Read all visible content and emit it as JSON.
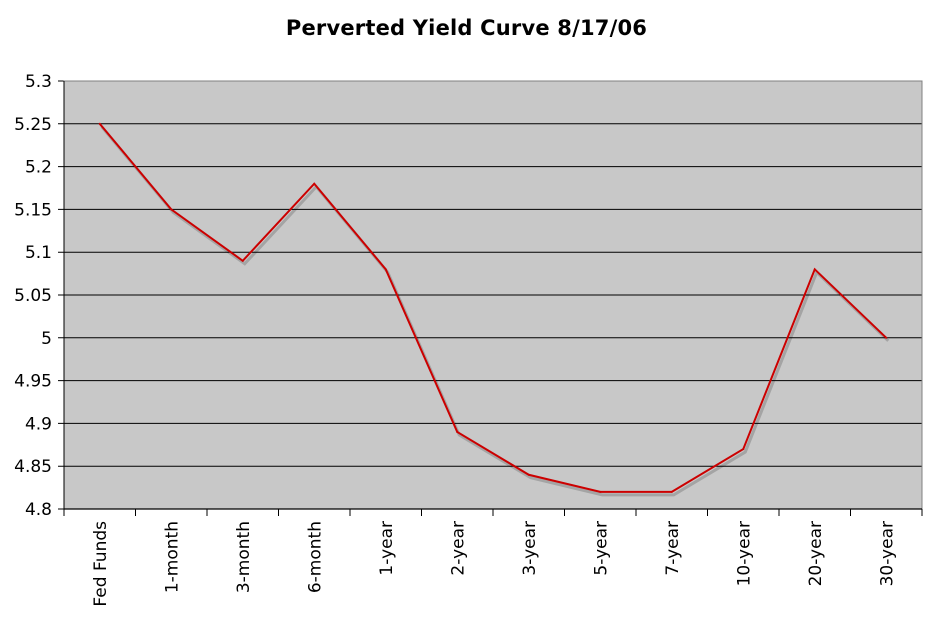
{
  "chart_data": {
    "type": "line",
    "title": "Perverted Yield Curve 8/17/06",
    "xlabel": "",
    "ylabel": "",
    "categories": [
      "Fed Funds",
      "1-month",
      "3-month",
      "6-month",
      "1-year",
      "2-year",
      "3-year",
      "5-year",
      "7-year",
      "10-year",
      "20-year",
      "30-year"
    ],
    "series": [
      {
        "values": [
          5.25,
          5.15,
          5.09,
          5.18,
          5.08,
          4.89,
          4.84,
          4.82,
          4.82,
          4.87,
          5.08,
          5.0
        ]
      }
    ],
    "ylim": [
      4.8,
      5.3
    ],
    "yticks": [
      "4.8",
      "4.85",
      "4.9",
      "4.95",
      "5",
      "5.05",
      "5.1",
      "5.15",
      "5.2",
      "5.25",
      "5.3"
    ],
    "grid": true,
    "legend": "none",
    "colors": {
      "line": "#cc0000",
      "plot_background": "#c8c8c8",
      "gridline": "#000000"
    }
  }
}
